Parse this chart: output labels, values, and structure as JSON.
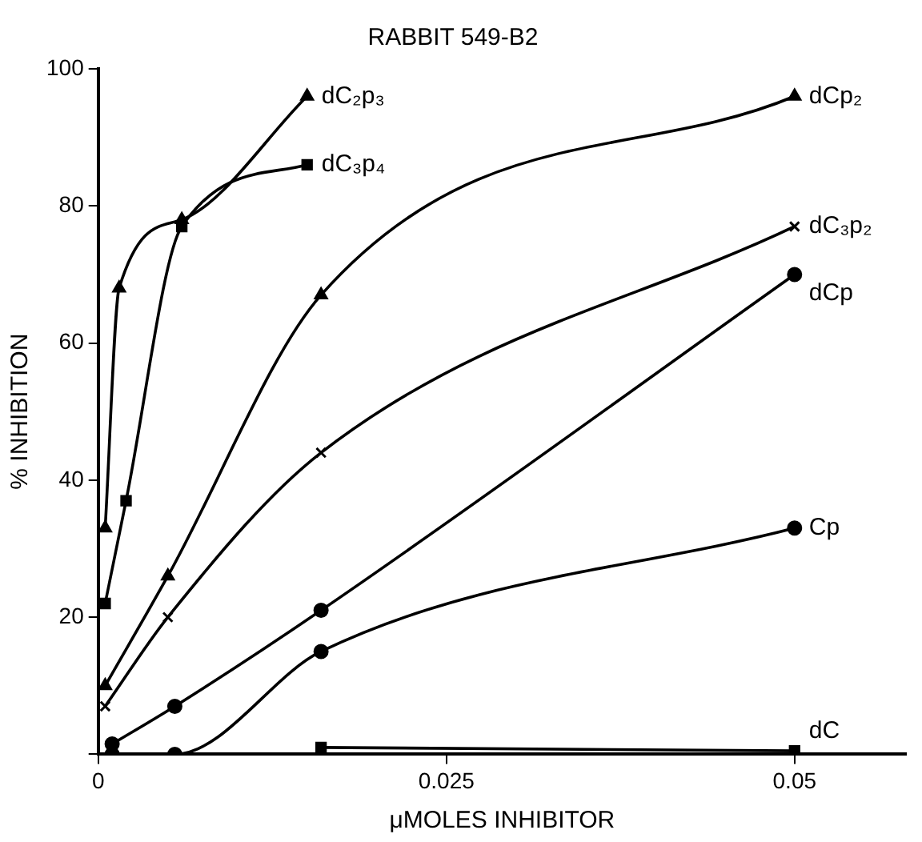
{
  "chart_data": {
    "type": "line",
    "title": "RABBIT 549-B2",
    "xlabel": "μMOLES INHIBITOR",
    "ylabel": "% INHIBITION",
    "xlim": [
      0,
      0.058
    ],
    "xticks": [
      {
        "value": 0,
        "label": "0"
      },
      0.025,
      0.05
    ],
    "ylim": [
      0,
      100
    ],
    "yticks": [
      {
        "value": 0,
        "label": null
      },
      20,
      40,
      60,
      80,
      100
    ],
    "grid": false,
    "legend": false,
    "line_style": "solid",
    "series": [
      {
        "name": "dC₂p₃",
        "color": "#000000",
        "marker": "triangle",
        "x": [
          0.0005,
          0.0015,
          0.006,
          0.015
        ],
        "values": [
          33,
          68,
          78,
          96
        ]
      },
      {
        "name": "dC₃p₄",
        "color": "#000000",
        "marker": "square",
        "x": [
          0.0005,
          0.002,
          0.006,
          0.015
        ],
        "values": [
          22,
          37,
          77,
          86
        ]
      },
      {
        "name": "dCp₂",
        "color": "#000000",
        "marker": "triangle",
        "x": [
          0.0005,
          0.005,
          0.016,
          0.05
        ],
        "values": [
          10,
          26,
          67,
          96
        ]
      },
      {
        "name": "dC₃p₂",
        "color": "#000000",
        "marker": "cross",
        "x": [
          0.0005,
          0.005,
          0.016,
          0.05
        ],
        "values": [
          7,
          20,
          44,
          77
        ]
      },
      {
        "name": "dCp",
        "color": "#000000",
        "marker": "circle",
        "x": [
          0.001,
          0.0055,
          0.016,
          0.05
        ],
        "values": [
          1.5,
          7,
          21,
          70
        ]
      },
      {
        "name": "Cp",
        "color": "#000000",
        "marker": "circle",
        "x": [
          0.001,
          0.0055,
          0.016,
          0.05
        ],
        "values": [
          0,
          0,
          15,
          33
        ]
      },
      {
        "name": "dC",
        "color": "#000000",
        "marker": "square",
        "x": [
          0.016,
          0.05
        ],
        "values": [
          1,
          0.5
        ]
      }
    ]
  }
}
